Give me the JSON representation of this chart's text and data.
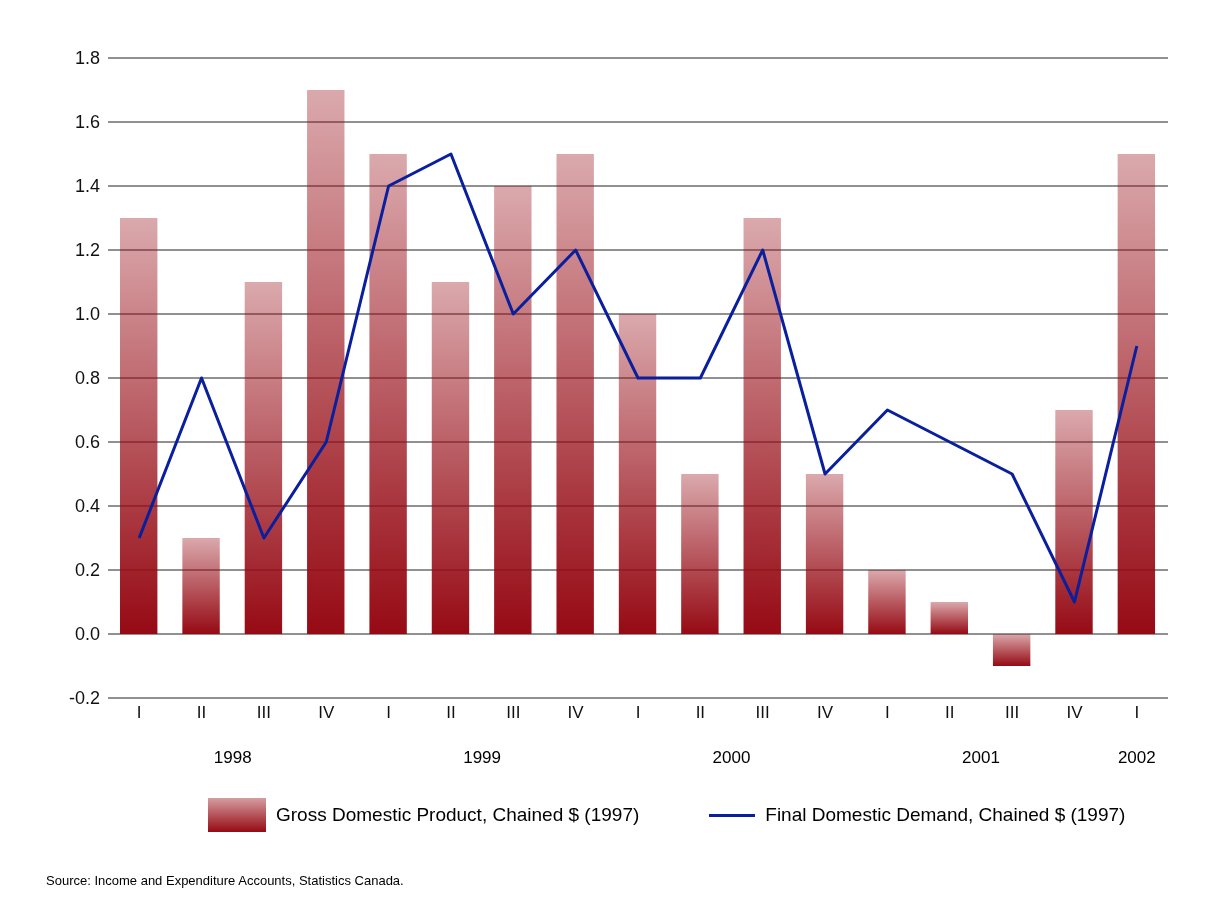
{
  "chart_data": {
    "type": "bar",
    "categories": [
      "I",
      "II",
      "III",
      "IV",
      "I",
      "II",
      "III",
      "IV",
      "I",
      "II",
      "III",
      "IV",
      "I",
      "II",
      "III",
      "IV",
      "I"
    ],
    "series": [
      {
        "name": "Gross Domestic Product, Chained $ (1997)",
        "color": "#960a14",
        "values": [
          1.3,
          0.3,
          1.1,
          1.7,
          1.5,
          1.1,
          1.4,
          1.5,
          1.0,
          0.5,
          1.3,
          0.5,
          0.2,
          0.1,
          -0.1,
          0.7,
          1.5
        ]
      },
      {
        "name": "Final Domestic Demand, Chained $ (1997)",
        "type": "line",
        "color": "#0a1f9e",
        "values": [
          0.3,
          0.8,
          0.3,
          0.6,
          1.4,
          1.5,
          1.0,
          1.2,
          0.8,
          0.8,
          1.2,
          0.5,
          0.7,
          0.6,
          0.5,
          0.1,
          0.9
        ]
      }
    ],
    "ylim": [
      -0.2,
      1.8
    ],
    "yticks": [
      -0.2,
      {
        "value": 0,
        "label": "0.0"
      },
      0.2,
      0.4,
      0.6,
      0.8,
      {
        "value": 1,
        "label": "1.0"
      },
      1.2,
      1.4,
      1.6,
      1.8
    ],
    "grid": "y",
    "legend": "bottom",
    "annotations": [
      "1998",
      "1999",
      "2000",
      "2001",
      "2002",
      "Source: Income and Expenditure Accounts, Statistics Canada."
    ]
  }
}
